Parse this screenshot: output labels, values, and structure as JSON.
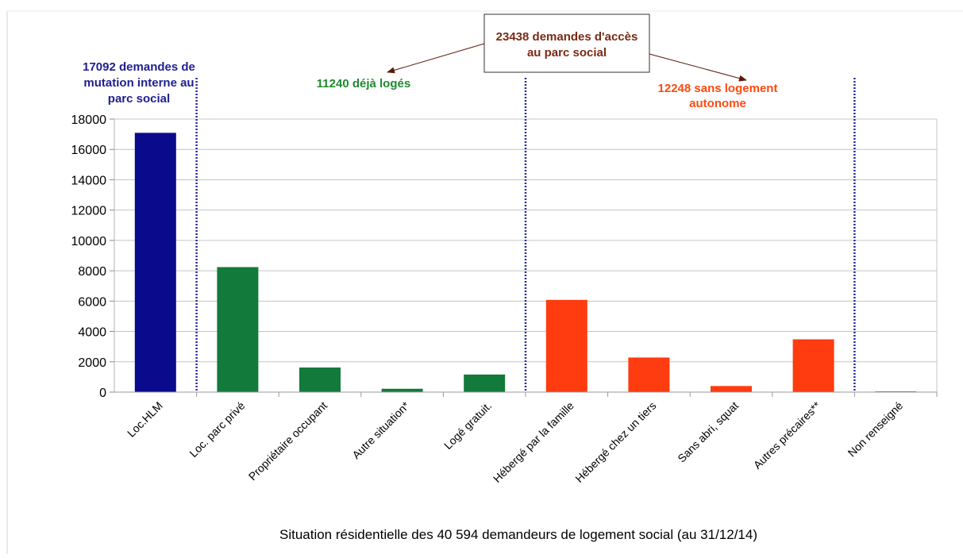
{
  "chart_data": {
    "type": "bar",
    "title": "",
    "xlabel": "Situation résidentielle des 40 594 demandeurs de logement social (au 31/12/14)",
    "ylabel": "",
    "ylim": [
      0,
      18000
    ],
    "yticks": [
      "0",
      "2000",
      "4000",
      "6000",
      "8000",
      "10000",
      "12000",
      "14000",
      "16000",
      "18000"
    ],
    "grid": true,
    "categories": [
      "Loc.HLM",
      "Loc. parc privé",
      "Propriétaire occupant",
      "Autre situation*",
      "Logé gratuit.",
      "Hébergé par la famille",
      "Hébergé chez un tiers",
      "Sans abri, squat",
      "Autres précaires**",
      "Non renseigné"
    ],
    "values": [
      17092,
      8240,
      1620,
      220,
      1160,
      6080,
      2280,
      400,
      3480,
      20
    ],
    "colors": [
      "#0a0a8c",
      "#127a3a",
      "#127a3a",
      "#127a3a",
      "#127a3a",
      "#ff3b10",
      "#ff3b10",
      "#ff3b10",
      "#ff3b10",
      "#6f6fb0"
    ],
    "annotations": {
      "blue_lines": [
        "17092 demandes de",
        "mutation interne  au",
        "parc social"
      ],
      "blue_color": "#1f1f8f",
      "green_text": "11240 déjà logés",
      "green_color": "#1e8a2e",
      "red_lines": [
        "12248 sans logement",
        "autonome"
      ],
      "red_color": "#ff4a10",
      "box_lines": [
        "23438 demandes d'accès",
        "au parc social"
      ],
      "box_color": "#7a2a14"
    },
    "divider_color": "#2a2aa0"
  }
}
